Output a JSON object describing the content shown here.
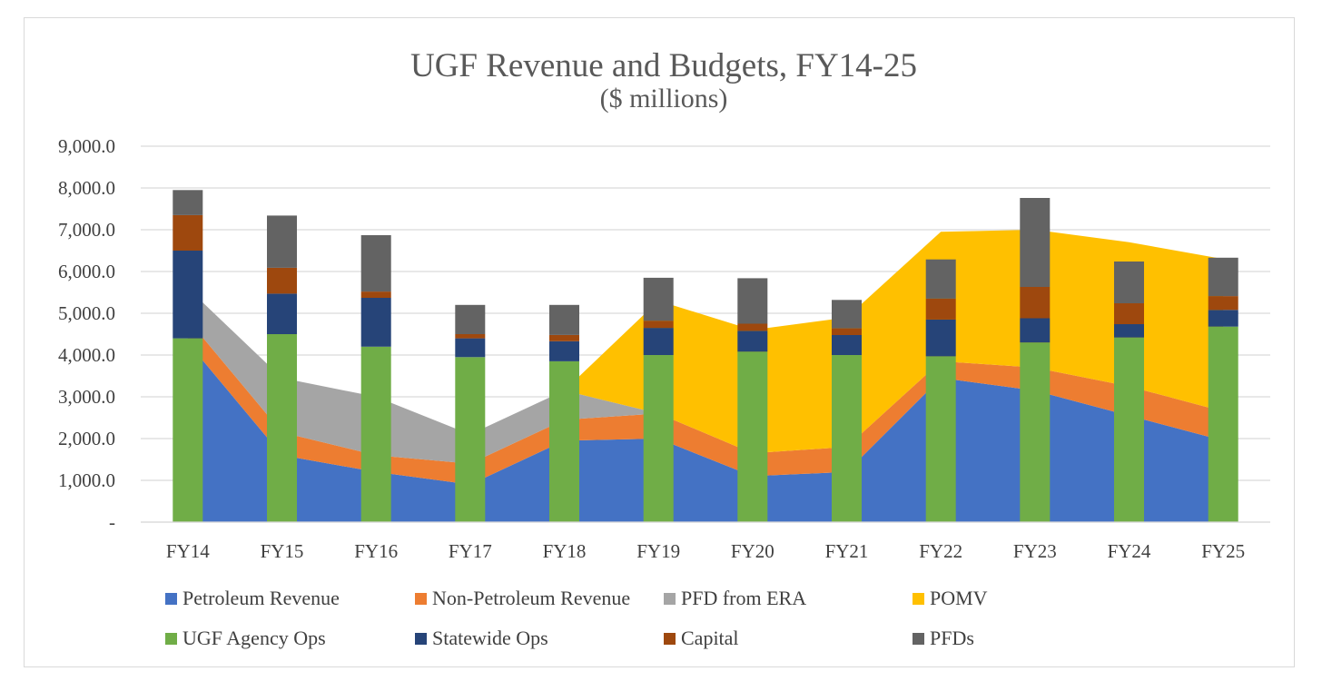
{
  "chart_data": {
    "type": "area",
    "title": "UGF Revenue and Budgets, FY14-25",
    "subtitle": "($ millions)",
    "categories": [
      "FY14",
      "FY15",
      "FY16",
      "FY17",
      "FY18",
      "FY19",
      "FY20",
      "FY21",
      "FY22",
      "FY23",
      "FY24",
      "FY25"
    ],
    "y_tick_labels": [
      "-",
      "1,000.0",
      "2,000.0",
      "3,000.0",
      "4,000.0",
      "5,000.0",
      "6,000.0",
      "7,000.0",
      "8,000.0",
      "9,000.0"
    ],
    "ylim": [
      0,
      9000
    ],
    "grid": true,
    "legend_position": "bottom",
    "area_series": [
      {
        "name": "Petroleum Revenue",
        "color": "#4472C4",
        "values": [
          4300,
          1600,
          1200,
          900,
          1950,
          2000,
          1100,
          1200,
          3450,
          3150,
          2550,
          1950
        ]
      },
      {
        "name": "Non-Petroleum Revenue",
        "color": "#ED7D31",
        "values": [
          550,
          550,
          400,
          500,
          500,
          600,
          550,
          600,
          400,
          550,
          700,
          700
        ]
      },
      {
        "name": "PFD from ERA",
        "color": "#A5A5A5",
        "values": [
          750,
          1300,
          1400,
          700,
          700,
          0,
          0,
          0,
          0,
          0,
          0,
          0
        ]
      },
      {
        "name": "POMV",
        "color": "#FFC000",
        "values": [
          0,
          0,
          0,
          0,
          0,
          2700,
          2950,
          3100,
          3100,
          3300,
          3450,
          3650
        ]
      }
    ],
    "bar_series": [
      {
        "name": "UGF Agency Ops",
        "color": "#70AD47",
        "values": [
          4400,
          4500,
          4200,
          3950,
          3850,
          4000,
          4080,
          4000,
          3970,
          4300,
          4420,
          4680
        ]
      },
      {
        "name": "Statewide Ops",
        "color": "#264478",
        "values": [
          2100,
          970,
          1170,
          450,
          480,
          650,
          500,
          480,
          880,
          580,
          320,
          400
        ]
      },
      {
        "name": "Capital",
        "color": "#9E480E",
        "values": [
          850,
          620,
          150,
          100,
          150,
          170,
          170,
          160,
          500,
          750,
          500,
          330
        ]
      },
      {
        "name": "PFDs",
        "color": "#636363",
        "values": [
          600,
          1250,
          1350,
          700,
          720,
          1030,
          1090,
          680,
          940,
          2130,
          1000,
          920
        ]
      }
    ],
    "legend": [
      {
        "name": "Petroleum Revenue",
        "color": "#4472C4"
      },
      {
        "name": "Non-Petroleum Revenue",
        "color": "#ED7D31"
      },
      {
        "name": "PFD from ERA",
        "color": "#A5A5A5"
      },
      {
        "name": "POMV",
        "color": "#FFC000"
      },
      {
        "name": "UGF Agency Ops",
        "color": "#70AD47"
      },
      {
        "name": "Statewide Ops",
        "color": "#264478"
      },
      {
        "name": "Capital",
        "color": "#9E480E"
      },
      {
        "name": "PFDs",
        "color": "#636363"
      }
    ]
  }
}
